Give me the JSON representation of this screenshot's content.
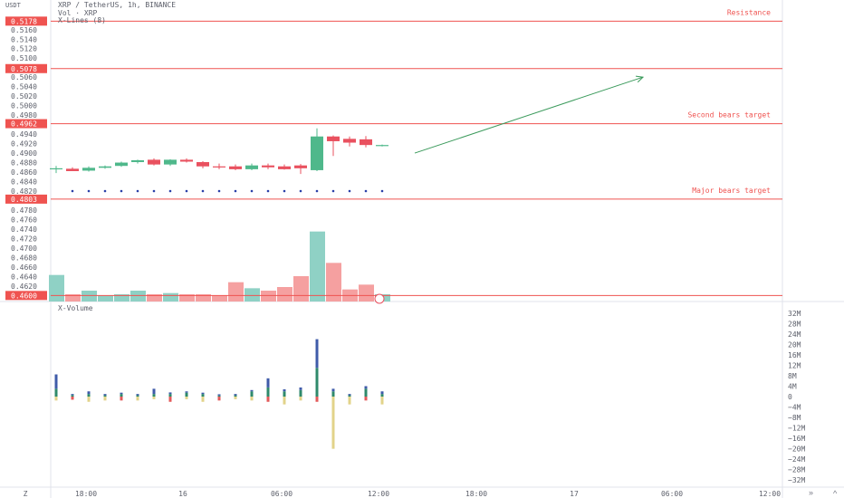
{
  "header": {
    "currency_label": "USDT",
    "symbol_line": "XRP / TetherUS, 1h, BINANCE",
    "vol_line": "Vol · XRP",
    "indicator_line": "X-Lines (8)"
  },
  "price_axis": {
    "min": 0.4593,
    "max": 0.5192,
    "ticks": [
      "0.5160",
      "0.5140",
      "0.5120",
      "0.5100",
      "0.5060",
      "0.5040",
      "0.5020",
      "0.5000",
      "0.4980",
      "0.4940",
      "0.4920",
      "0.4900",
      "0.4880",
      "0.4860",
      "0.4840",
      "0.4820",
      "0.4780",
      "0.4760",
      "0.4740",
      "0.4720",
      "0.4700",
      "0.4680",
      "0.4660",
      "0.4640",
      "0.4620"
    ]
  },
  "levels": [
    {
      "price": 0.5178,
      "label": "0.5178",
      "name": "Resistance"
    },
    {
      "price": 0.5078,
      "label": "0.5078",
      "name": ""
    },
    {
      "price": 0.4962,
      "label": "0.4962",
      "name": "Second bears target"
    },
    {
      "price": 0.4803,
      "label": "0.4803",
      "name": "Major bears target"
    },
    {
      "price": 0.46,
      "label": "0.4600",
      "name": ""
    }
  ],
  "time_axis": {
    "labels": [
      "Z",
      "18:00",
      "16",
      "06:00",
      "12:00",
      "18:00",
      "17",
      "06:00",
      "12:00"
    ]
  },
  "chart_data": {
    "type": "candlestick",
    "candles": [
      {
        "o": 0.4866,
        "h": 0.4873,
        "l": 0.4858,
        "c": 0.4868
      },
      {
        "o": 0.4867,
        "h": 0.487,
        "l": 0.4862,
        "c": 0.4862
      },
      {
        "o": 0.4863,
        "h": 0.4872,
        "l": 0.4861,
        "c": 0.4869
      },
      {
        "o": 0.4869,
        "h": 0.4874,
        "l": 0.4867,
        "c": 0.4872
      },
      {
        "o": 0.4873,
        "h": 0.4882,
        "l": 0.4871,
        "c": 0.488
      },
      {
        "o": 0.4881,
        "h": 0.4886,
        "l": 0.4878,
        "c": 0.4885
      },
      {
        "o": 0.4886,
        "h": 0.4889,
        "l": 0.4874,
        "c": 0.4876
      },
      {
        "o": 0.4876,
        "h": 0.4887,
        "l": 0.4873,
        "c": 0.4886
      },
      {
        "o": 0.4886,
        "h": 0.4889,
        "l": 0.488,
        "c": 0.4882
      },
      {
        "o": 0.4881,
        "h": 0.4883,
        "l": 0.4868,
        "c": 0.4872
      },
      {
        "o": 0.4872,
        "h": 0.4878,
        "l": 0.4866,
        "c": 0.487
      },
      {
        "o": 0.4872,
        "h": 0.4876,
        "l": 0.4864,
        "c": 0.4866
      },
      {
        "o": 0.4866,
        "h": 0.4878,
        "l": 0.4864,
        "c": 0.4874
      },
      {
        "o": 0.4874,
        "h": 0.4878,
        "l": 0.4866,
        "c": 0.487
      },
      {
        "o": 0.4872,
        "h": 0.4876,
        "l": 0.4865,
        "c": 0.4866
      },
      {
        "o": 0.4874,
        "h": 0.4877,
        "l": 0.4856,
        "c": 0.4868
      },
      {
        "o": 0.4864,
        "h": 0.4952,
        "l": 0.4862,
        "c": 0.4935
      },
      {
        "o": 0.4935,
        "h": 0.4937,
        "l": 0.4894,
        "c": 0.4925
      },
      {
        "o": 0.493,
        "h": 0.4935,
        "l": 0.4914,
        "c": 0.4922
      },
      {
        "o": 0.4929,
        "h": 0.4936,
        "l": 0.4912,
        "c": 0.4917
      },
      {
        "o": 0.4916,
        "h": 0.4918,
        "l": 0.4914,
        "c": 0.4917
      }
    ],
    "projection": {
      "from_index": 22,
      "from_price": 0.49,
      "to_index": 36,
      "to_price": 0.506
    },
    "volume_overlay": {
      "max": 0.6,
      "values": [
        0.22,
        0.06,
        0.09,
        0.05,
        0.06,
        0.09,
        0.06,
        0.07,
        0.06,
        0.06,
        0.05,
        0.16,
        0.11,
        0.09,
        0.12,
        0.21,
        0.58,
        0.32,
        0.1,
        0.14,
        0.06
      ]
    },
    "x_volume": {
      "axis_ticks": [
        "32M",
        "28M",
        "24M",
        "20M",
        "16M",
        "12M",
        "8M",
        "4M",
        "0",
        "−4M",
        "−8M",
        "−12M",
        "−16M",
        "−20M",
        "−24M",
        "−28M",
        "−32M"
      ],
      "ylim": [
        -34,
        34
      ],
      "bars": [
        {
          "buy": 5.5,
          "mid": 3.0,
          "sell": -1.5
        },
        {
          "buy": 0.4,
          "mid": 0.6,
          "sell": -1.2
        },
        {
          "buy": 1.0,
          "mid": 1.0,
          "sell": -2.0
        },
        {
          "buy": 0.5,
          "mid": 0.5,
          "sell": -1.5
        },
        {
          "buy": 0.5,
          "mid": 1.0,
          "sell": -1.5
        },
        {
          "buy": 0.5,
          "mid": 0.5,
          "sell": -1.5
        },
        {
          "buy": 2.0,
          "mid": 1.0,
          "sell": -1.0
        },
        {
          "buy": 0.6,
          "mid": 1.0,
          "sell": -2.0
        },
        {
          "buy": 0.5,
          "mid": 1.5,
          "sell": -1.0
        },
        {
          "buy": 0.5,
          "mid": 1.0,
          "sell": -2.0
        },
        {
          "buy": 0.5,
          "mid": 0.4,
          "sell": -1.5
        },
        {
          "buy": 0.5,
          "mid": 0.5,
          "sell": -1.0
        },
        {
          "buy": 0.5,
          "mid": 2.0,
          "sell": -1.5
        },
        {
          "buy": 3.5,
          "mid": 3.5,
          "sell": -2.0
        },
        {
          "buy": 0.8,
          "mid": 2.0,
          "sell": -3.0
        },
        {
          "buy": 1.0,
          "mid": 2.5,
          "sell": -1.5
        },
        {
          "buy": 11.0,
          "mid": 11.0,
          "sell": -2.0
        },
        {
          "buy": 1.0,
          "mid": 2.0,
          "sell": -20.0
        },
        {
          "buy": 0.5,
          "mid": 0.5,
          "sell": -3.0
        },
        {
          "buy": 1.0,
          "mid": 3.0,
          "sell": -1.5
        },
        {
          "buy": 1.0,
          "mid": 1.0,
          "sell": -3.0
        }
      ]
    }
  },
  "colors": {
    "up": "#4fb88b",
    "down": "#e9515f",
    "level_line": "#ef5350",
    "projection": "#3a9a5b",
    "vol_up": "#8fd1c5",
    "vol_down": "#f5a0a0",
    "xvol_buy": "#3f5ba9",
    "xvol_mid": "#2f8a6b",
    "xvol_sell": "#e2d38a",
    "xvol_red": "#e35a5a"
  },
  "controls": {
    "scroll_right": "»",
    "scroll_up": "^"
  }
}
